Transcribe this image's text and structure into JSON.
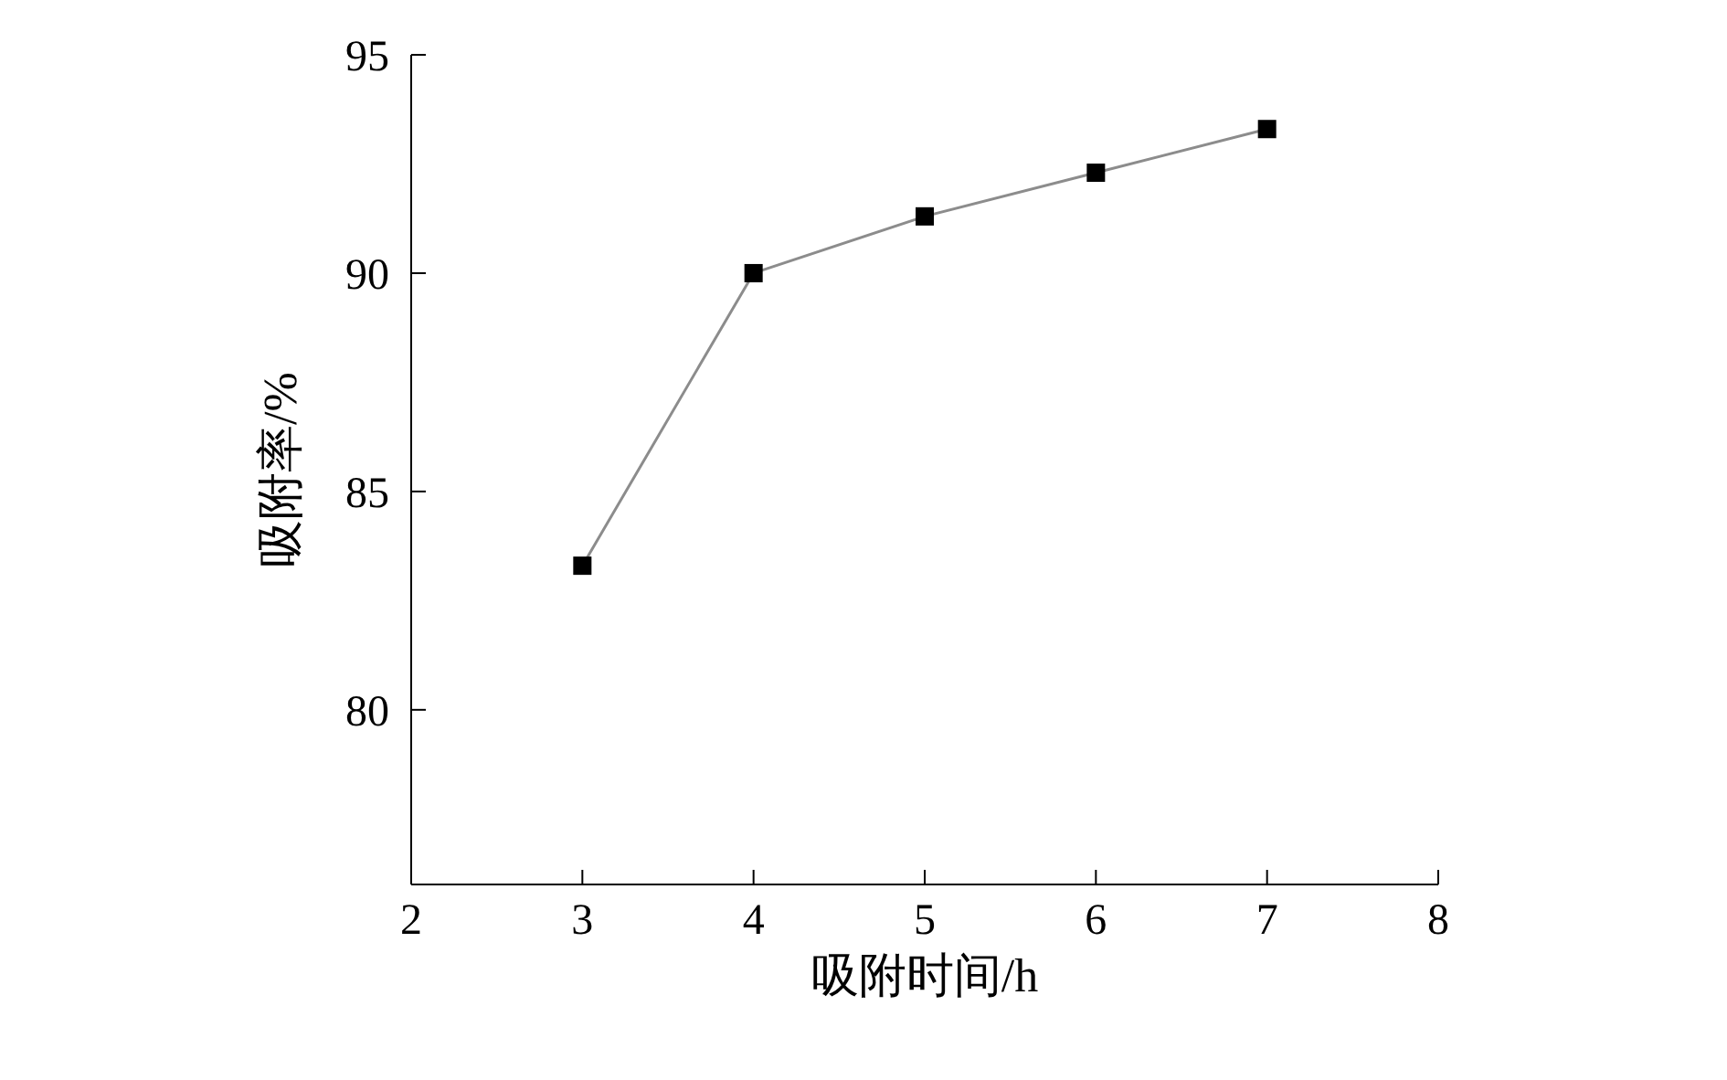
{
  "chart_data": {
    "type": "line",
    "xlabel": "吸附时间/h",
    "ylabel": "吸附率/%",
    "x": [
      3,
      4,
      5,
      6,
      7
    ],
    "series": [
      {
        "color": "#8c8c8c",
        "values": [
          83.3,
          90.0,
          91.3,
          92.3,
          93.3
        ]
      }
    ],
    "xlim": [
      2,
      8
    ],
    "xticks": [
      2,
      3,
      4,
      5,
      6,
      7,
      8
    ],
    "ylim": [
      76,
      95
    ],
    "yticks": [
      80,
      85,
      90,
      95
    ],
    "marker": "square",
    "grid": false,
    "legend": false
  }
}
